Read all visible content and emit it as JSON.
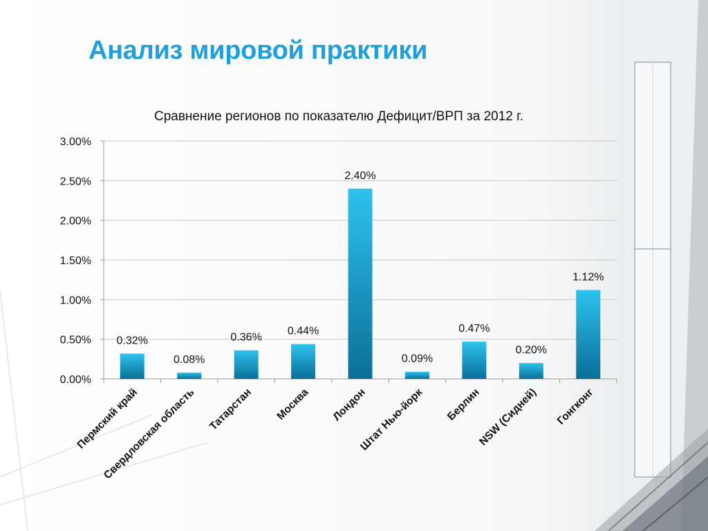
{
  "slide": {
    "title": "Анализ мировой практики"
  },
  "colors": {
    "accent": "#1f9fdc",
    "bar_top": "#2ec2ef",
    "bar_bottom": "#0a6f97"
  },
  "chart_data": {
    "type": "bar",
    "title": "Сравнение регионов по показателю Дефицит/ВРП за 2012 г.",
    "categories": [
      "Пермский край",
      "Свердловская область",
      "Татарстан",
      "Москва",
      "Лондон",
      "Штат Нью-йорк",
      "Берлин",
      "NSW (Сидней)",
      "Гонгконг"
    ],
    "values": [
      0.32,
      0.08,
      0.36,
      0.44,
      2.4,
      0.09,
      0.47,
      0.2,
      1.12
    ],
    "data_labels": [
      "0.32%",
      "0.08%",
      "0.36%",
      "0.44%",
      "2.40%",
      "0.09%",
      "0.47%",
      "0.20%",
      "1.12%"
    ],
    "yticks": [
      0,
      0.5,
      1.0,
      1.5,
      2.0,
      2.5,
      3.0
    ],
    "ytick_labels": [
      "0.00%",
      "0.50%",
      "1.00%",
      "1.50%",
      "2.00%",
      "2.50%",
      "3.00%"
    ],
    "ylim": [
      0,
      3.0
    ],
    "grid": true,
    "legend": false
  }
}
